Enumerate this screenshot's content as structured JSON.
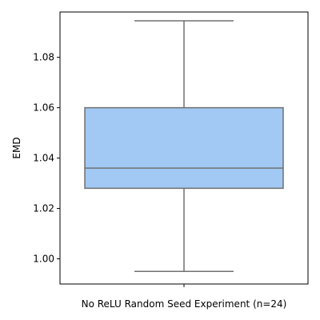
{
  "chart_data": {
    "type": "box",
    "title": "",
    "xlabel": "No ReLU Random Seed Experiment (n=24)",
    "ylabel": "EMD",
    "ylim": [
      0.99,
      1.098
    ],
    "yticks": [
      1.0,
      1.02,
      1.04,
      1.06,
      1.08
    ],
    "ytick_labels": [
      "1.00",
      "1.02",
      "1.04",
      "1.06",
      "1.08"
    ],
    "grid": false,
    "series": [
      {
        "category": "No ReLU Random Seed Experiment (n=24)",
        "min": 0.995,
        "q1": 1.028,
        "median": 1.036,
        "q3": 1.06,
        "max": 1.0945
      }
    ],
    "colors": {
      "box_fill": "#a1c9f4",
      "box_edge": "#707070",
      "axis": "#000000"
    }
  }
}
